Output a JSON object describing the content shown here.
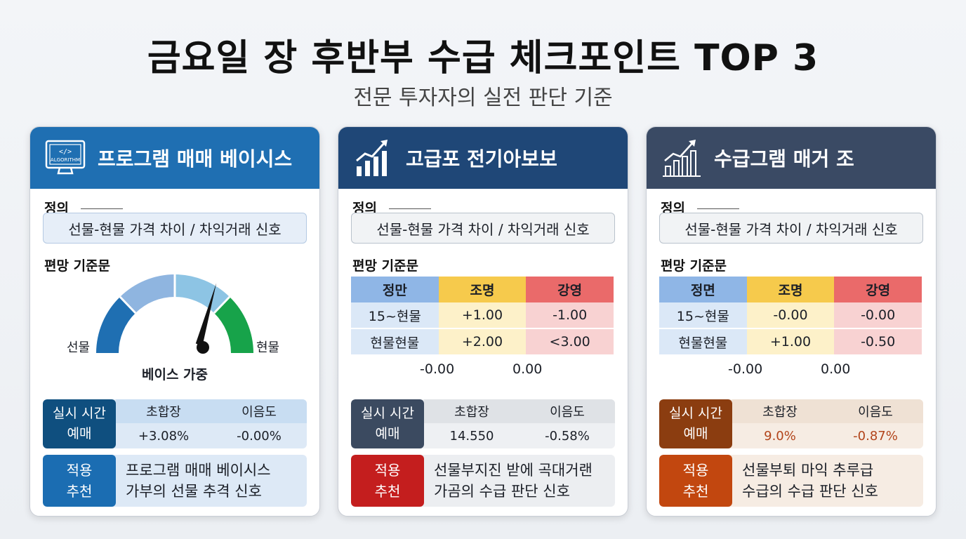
{
  "title": "금요일 장 후반부 수급 체크포인트 TOP 3",
  "subtitle": "전문 투자자의 실전 판단 기준",
  "cards": [
    {
      "header": "프로그램 매매 베이시스",
      "header_color": "#1f6fb2",
      "icon": "algorithm-monitor-icon",
      "icon_text": "ALGORITHM",
      "definition_label": "정의",
      "definition": "선물-현물 가격 차이 / 차익거래 신호",
      "bias_label": "편망 기준문",
      "gauge_left": "선물",
      "gauge_right": "현물",
      "gauge_caption": "베이스 가중",
      "realtime_label_1": "실시 시간",
      "realtime_label_2": "예매",
      "realtime_label_color": "#0f4f7f",
      "realtime_cols": [
        "초합장",
        "이음도"
      ],
      "realtime_vals": [
        "+3.08%",
        "-0.00%"
      ],
      "apply_label_1": "적용",
      "apply_label_2": "추천",
      "apply_label_color": "#1b6db2",
      "apply_line_1": "프로그램 매매 베이시스",
      "apply_line_2": "가부의 선물 추격 신호"
    },
    {
      "header": "고급포 전기아보보",
      "header_color": "#1f4777",
      "icon": "bar-chart-growth-icon",
      "definition_label": "정의",
      "definition": "선물-현물 가격 차이 / 차익거래 신호",
      "bias_label": "편망 기준문",
      "table_headers": [
        "정만",
        "조명",
        "강영"
      ],
      "table_rows": [
        [
          "15~현물",
          "+1.00",
          "-1.00"
        ],
        [
          "현물현물",
          "+2.00",
          "<3.00"
        ]
      ],
      "table_foot": [
        "-0.00",
        "0.00"
      ],
      "realtime_label_1": "실시 시간",
      "realtime_label_2": "예매",
      "realtime_label_color": "#3b4a60",
      "realtime_cols": [
        "초합장",
        "이음도"
      ],
      "realtime_vals": [
        "14.550",
        "-0.58%"
      ],
      "apply_label_1": "적용",
      "apply_label_2": "추천",
      "apply_label_color": "#c41e1e",
      "apply_line_1": "선물부지진 받에 곡대거랜",
      "apply_line_2": "가곰의 수급 판단 신호"
    },
    {
      "header": "수급그램 매거 조",
      "header_color": "#3a4a64",
      "icon": "bar-chart-growth-icon",
      "definition_label": "정의",
      "definition": "선물-현물 가격 차이 / 차익거래 신호",
      "bias_label": "편망 기준문",
      "table_headers": [
        "정면",
        "조명",
        "강영"
      ],
      "table_rows": [
        [
          "15~현물",
          "-0.00",
          "-0.00"
        ],
        [
          "현물현물",
          "+1.00",
          "-0.50"
        ]
      ],
      "table_foot": [
        "-0.00",
        "0.00"
      ],
      "realtime_label_1": "실시 시간",
      "realtime_label_2": "예매",
      "realtime_label_color": "#8b3d10",
      "realtime_cols": [
        "초합장",
        "이음도"
      ],
      "realtime_vals": [
        "9.0%",
        "-0.87%"
      ],
      "realtime_val_color": "#b2441a",
      "apply_label_1": "적용",
      "apply_label_2": "추천",
      "apply_label_color": "#c2470f",
      "apply_line_1": "선물부퇴 마익 추루급",
      "apply_line_2": "수급의 수급 판단 신호"
    }
  ]
}
